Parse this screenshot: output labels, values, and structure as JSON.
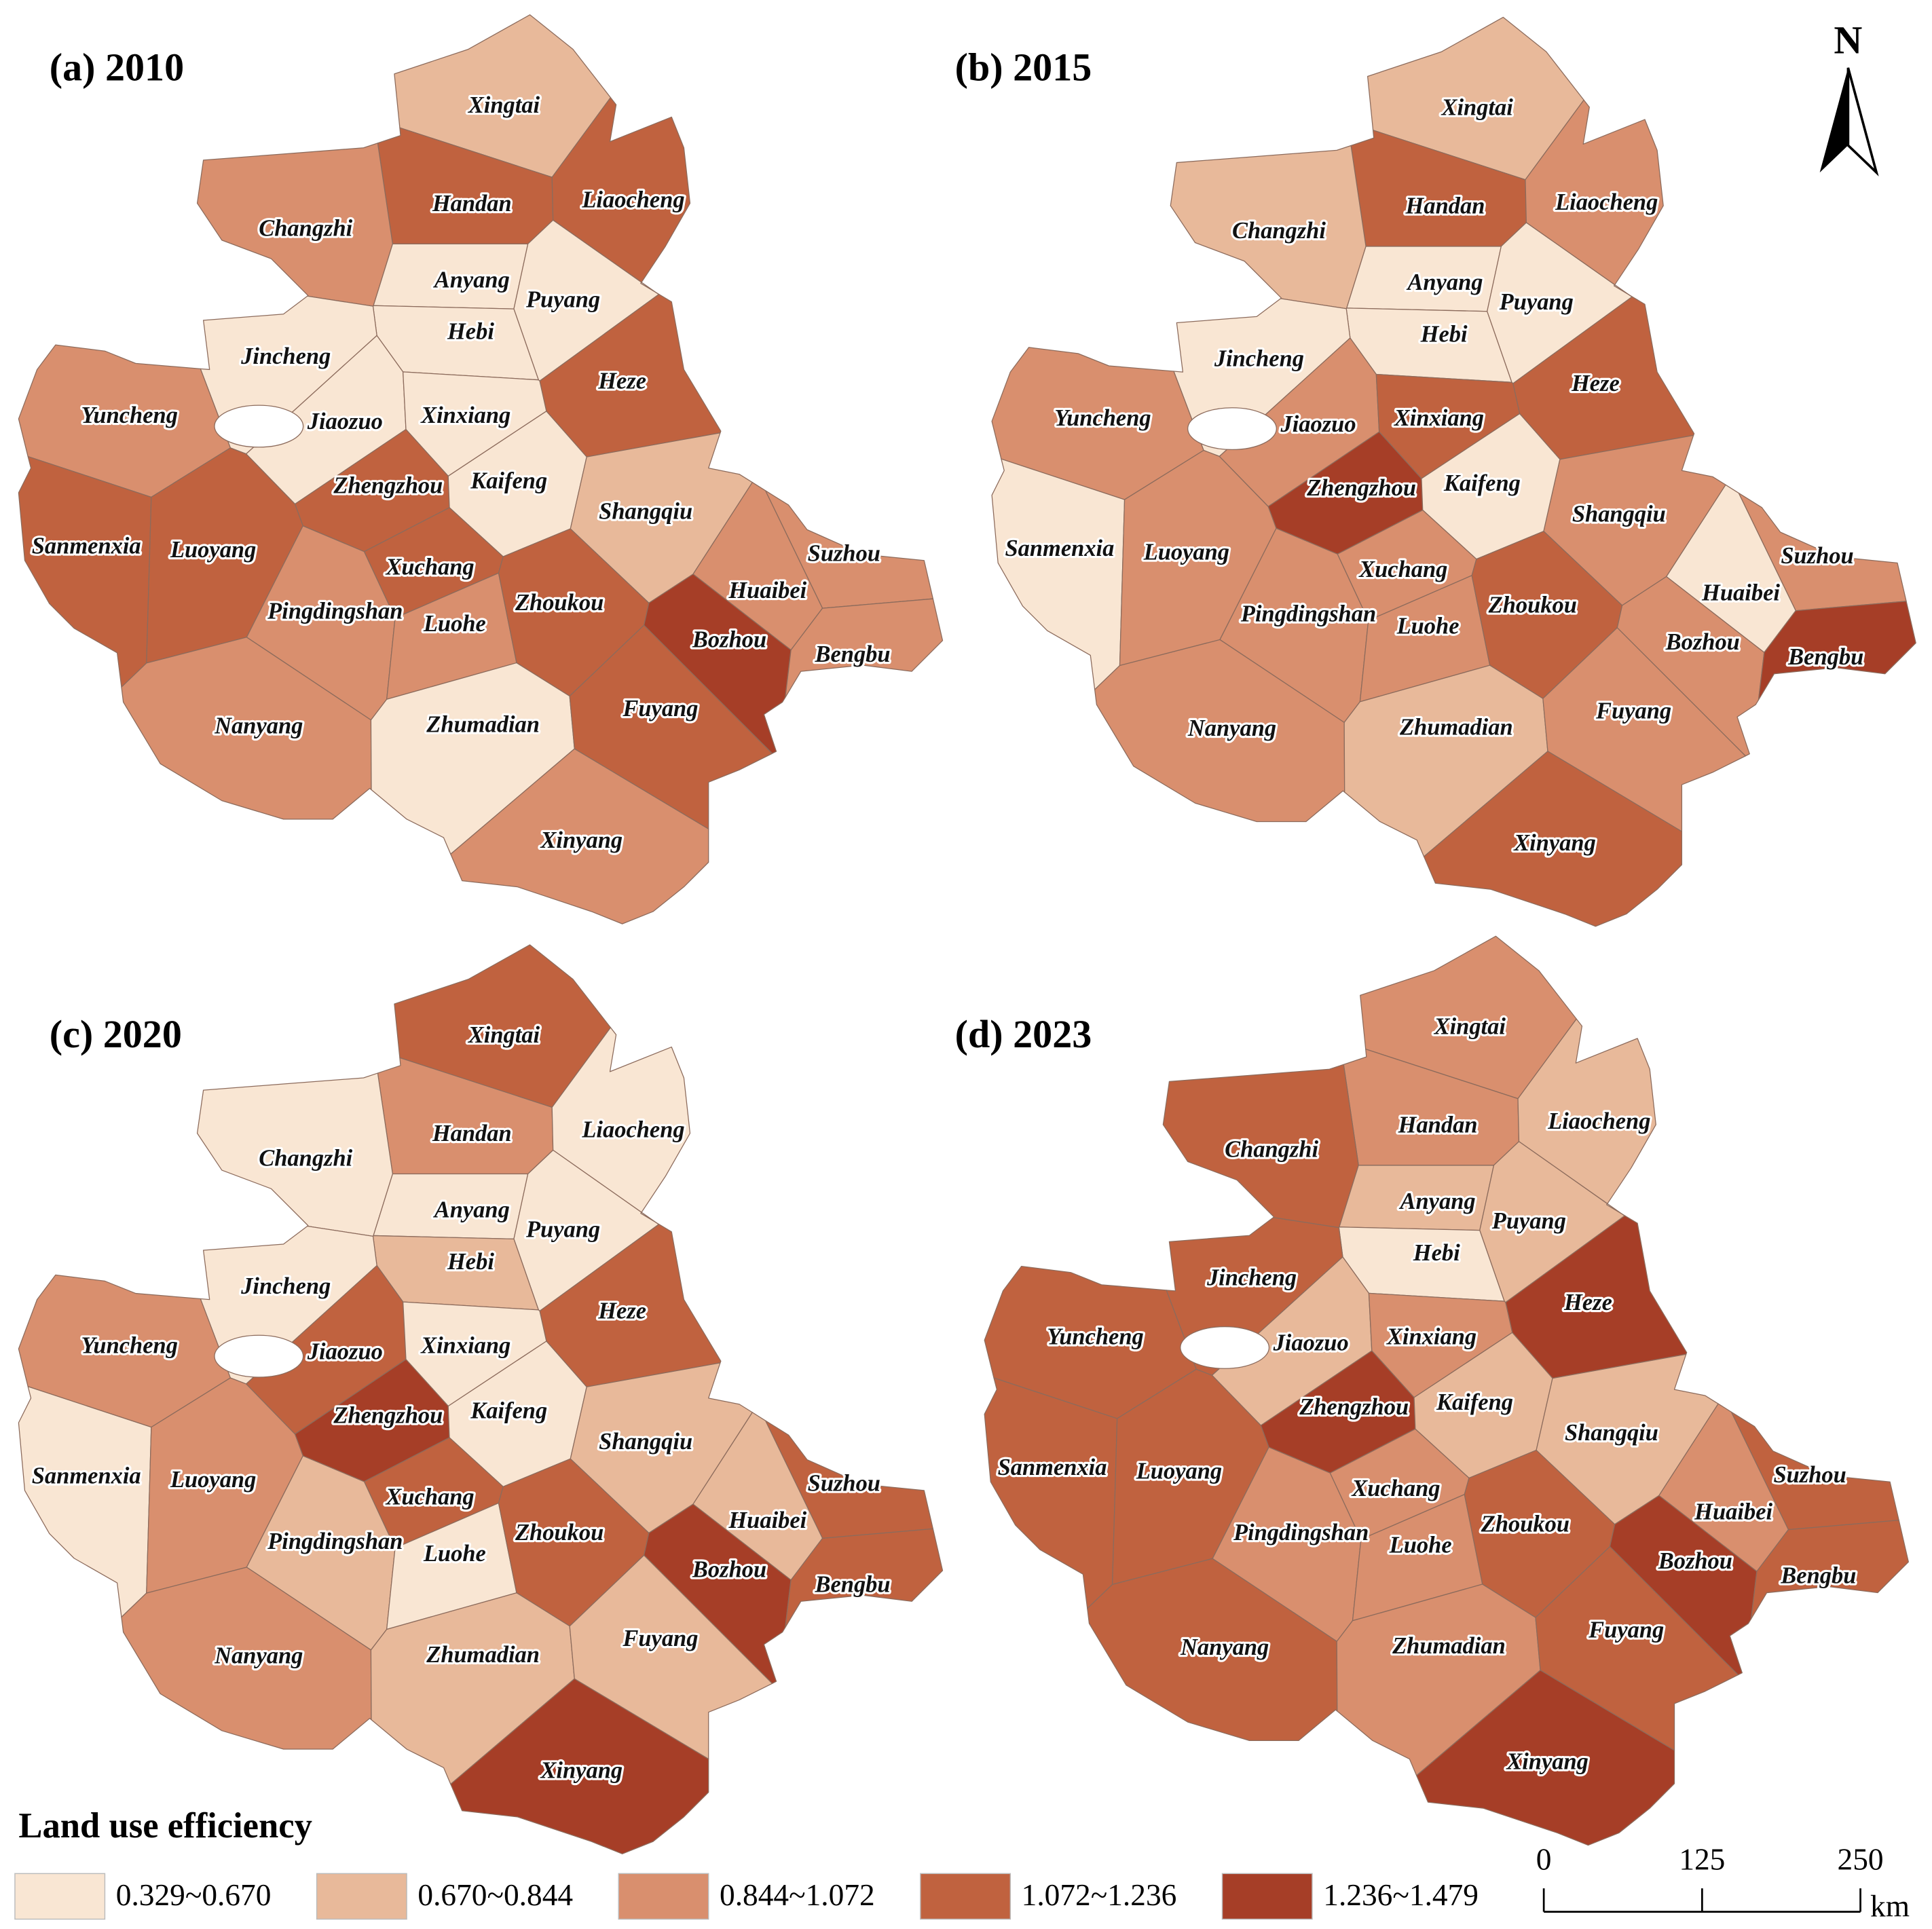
{
  "panels": [
    {
      "title": "(a) 2010",
      "regions": [
        {
          "name": "Xingtai",
          "color": "#e8b99a"
        },
        {
          "name": "Handan",
          "color": "#c0623f"
        },
        {
          "name": "Liaocheng",
          "color": "#c0623f"
        },
        {
          "name": "Changzhi",
          "color": "#d98f6e"
        },
        {
          "name": "Anyang",
          "color": "#f9e6d3"
        },
        {
          "name": "Puyang",
          "color": "#f9e6d3"
        },
        {
          "name": "Hebi",
          "color": "#f9e6d3"
        },
        {
          "name": "Jincheng",
          "color": "#f9e6d3"
        },
        {
          "name": "Heze",
          "color": "#c0623f"
        },
        {
          "name": "Yuncheng",
          "color": "#d98f6e"
        },
        {
          "name": "Jiaozuo",
          "color": "#f9e6d3"
        },
        {
          "name": "Xinxiang",
          "color": "#f9e6d3"
        },
        {
          "name": "Zhengzhou",
          "color": "#c0623f"
        },
        {
          "name": "Kaifeng",
          "color": "#f9e6d3"
        },
        {
          "name": "Shangqiu",
          "color": "#e8b99a"
        },
        {
          "name": "Sanmenxia",
          "color": "#c0623f"
        },
        {
          "name": "Luoyang",
          "color": "#c0623f"
        },
        {
          "name": "Xuchang",
          "color": "#c0623f"
        },
        {
          "name": "Suzhou",
          "color": "#d98f6e"
        },
        {
          "name": "Huaibei",
          "color": "#d98f6e"
        },
        {
          "name": "Pingdingshan",
          "color": "#d98f6e"
        },
        {
          "name": "Luohe",
          "color": "#d98f6e"
        },
        {
          "name": "Zhoukou",
          "color": "#c0623f"
        },
        {
          "name": "Bozhou",
          "color": "#a63e27"
        },
        {
          "name": "Bengbu",
          "color": "#d98f6e"
        },
        {
          "name": "Nanyang",
          "color": "#d98f6e"
        },
        {
          "name": "Zhumadian",
          "color": "#f9e6d3"
        },
        {
          "name": "Fuyang",
          "color": "#c0623f"
        },
        {
          "name": "Xinyang",
          "color": "#d98f6e"
        }
      ]
    },
    {
      "title": "(b) 2015",
      "regions": [
        {
          "name": "Xingtai",
          "color": "#e8b99a"
        },
        {
          "name": "Handan",
          "color": "#c0623f"
        },
        {
          "name": "Liaocheng",
          "color": "#d98f6e"
        },
        {
          "name": "Changzhi",
          "color": "#e8b99a"
        },
        {
          "name": "Anyang",
          "color": "#f9e6d3"
        },
        {
          "name": "Puyang",
          "color": "#f9e6d3"
        },
        {
          "name": "Hebi",
          "color": "#f9e6d3"
        },
        {
          "name": "Jincheng",
          "color": "#f9e6d3"
        },
        {
          "name": "Heze",
          "color": "#c0623f"
        },
        {
          "name": "Yuncheng",
          "color": "#d98f6e"
        },
        {
          "name": "Jiaozuo",
          "color": "#d98f6e"
        },
        {
          "name": "Xinxiang",
          "color": "#c0623f"
        },
        {
          "name": "Zhengzhou",
          "color": "#a63e27"
        },
        {
          "name": "Kaifeng",
          "color": "#f9e6d3"
        },
        {
          "name": "Shangqiu",
          "color": "#d98f6e"
        },
        {
          "name": "Sanmenxia",
          "color": "#f9e6d3"
        },
        {
          "name": "Luoyang",
          "color": "#d98f6e"
        },
        {
          "name": "Xuchang",
          "color": "#d98f6e"
        },
        {
          "name": "Suzhou",
          "color": "#d98f6e"
        },
        {
          "name": "Huaibei",
          "color": "#f9e6d3"
        },
        {
          "name": "Pingdingshan",
          "color": "#d98f6e"
        },
        {
          "name": "Luohe",
          "color": "#d98f6e"
        },
        {
          "name": "Zhoukou",
          "color": "#c0623f"
        },
        {
          "name": "Bozhou",
          "color": "#d98f6e"
        },
        {
          "name": "Bengbu",
          "color": "#a63e27"
        },
        {
          "name": "Nanyang",
          "color": "#d98f6e"
        },
        {
          "name": "Zhumadian",
          "color": "#e8b99a"
        },
        {
          "name": "Fuyang",
          "color": "#d98f6e"
        },
        {
          "name": "Xinyang",
          "color": "#c0623f"
        }
      ]
    },
    {
      "title": "(c) 2020",
      "regions": [
        {
          "name": "Xingtai",
          "color": "#c0623f"
        },
        {
          "name": "Handan",
          "color": "#d98f6e"
        },
        {
          "name": "Liaocheng",
          "color": "#f9e6d3"
        },
        {
          "name": "Changzhi",
          "color": "#f9e6d3"
        },
        {
          "name": "Anyang",
          "color": "#f9e6d3"
        },
        {
          "name": "Puyang",
          "color": "#f9e6d3"
        },
        {
          "name": "Hebi",
          "color": "#e8b99a"
        },
        {
          "name": "Jincheng",
          "color": "#f9e6d3"
        },
        {
          "name": "Heze",
          "color": "#c0623f"
        },
        {
          "name": "Yuncheng",
          "color": "#d98f6e"
        },
        {
          "name": "Jiaozuo",
          "color": "#c0623f"
        },
        {
          "name": "Xinxiang",
          "color": "#f9e6d3"
        },
        {
          "name": "Zhengzhou",
          "color": "#a63e27"
        },
        {
          "name": "Kaifeng",
          "color": "#f9e6d3"
        },
        {
          "name": "Shangqiu",
          "color": "#e8b99a"
        },
        {
          "name": "Sanmenxia",
          "color": "#f9e6d3"
        },
        {
          "name": "Luoyang",
          "color": "#d98f6e"
        },
        {
          "name": "Xuchang",
          "color": "#c0623f"
        },
        {
          "name": "Suzhou",
          "color": "#c0623f"
        },
        {
          "name": "Huaibei",
          "color": "#e8b99a"
        },
        {
          "name": "Pingdingshan",
          "color": "#e8b99a"
        },
        {
          "name": "Luohe",
          "color": "#f9e6d3"
        },
        {
          "name": "Zhoukou",
          "color": "#c0623f"
        },
        {
          "name": "Bozhou",
          "color": "#a63e27"
        },
        {
          "name": "Bengbu",
          "color": "#c0623f"
        },
        {
          "name": "Nanyang",
          "color": "#d98f6e"
        },
        {
          "name": "Zhumadian",
          "color": "#e8b99a"
        },
        {
          "name": "Fuyang",
          "color": "#e8b99a"
        },
        {
          "name": "Xinyang",
          "color": "#a63e27"
        }
      ]
    },
    {
      "title": "(d) 2023",
      "regions": [
        {
          "name": "Xingtai",
          "color": "#d98f6e"
        },
        {
          "name": "Handan",
          "color": "#d98f6e"
        },
        {
          "name": "Liaocheng",
          "color": "#e8b99a"
        },
        {
          "name": "Changzhi",
          "color": "#c0623f"
        },
        {
          "name": "Anyang",
          "color": "#e8b99a"
        },
        {
          "name": "Puyang",
          "color": "#e8b99a"
        },
        {
          "name": "Hebi",
          "color": "#f9e6d3"
        },
        {
          "name": "Jincheng",
          "color": "#c0623f"
        },
        {
          "name": "Heze",
          "color": "#a63e27"
        },
        {
          "name": "Yuncheng",
          "color": "#c0623f"
        },
        {
          "name": "Jiaozuo",
          "color": "#e8b99a"
        },
        {
          "name": "Xinxiang",
          "color": "#d98f6e"
        },
        {
          "name": "Zhengzhou",
          "color": "#a63e27"
        },
        {
          "name": "Kaifeng",
          "color": "#e8b99a"
        },
        {
          "name": "Shangqiu",
          "color": "#e8b99a"
        },
        {
          "name": "Sanmenxia",
          "color": "#c0623f"
        },
        {
          "name": "Luoyang",
          "color": "#c0623f"
        },
        {
          "name": "Xuchang",
          "color": "#d98f6e"
        },
        {
          "name": "Suzhou",
          "color": "#c0623f"
        },
        {
          "name": "Huaibei",
          "color": "#d98f6e"
        },
        {
          "name": "Pingdingshan",
          "color": "#d98f6e"
        },
        {
          "name": "Luohe",
          "color": "#d98f6e"
        },
        {
          "name": "Zhoukou",
          "color": "#c0623f"
        },
        {
          "name": "Bozhou",
          "color": "#a63e27"
        },
        {
          "name": "Bengbu",
          "color": "#c0623f"
        },
        {
          "name": "Nanyang",
          "color": "#c0623f"
        },
        {
          "name": "Zhumadian",
          "color": "#d98f6e"
        },
        {
          "name": "Fuyang",
          "color": "#c0623f"
        },
        {
          "name": "Xinyang",
          "color": "#a63e27"
        }
      ]
    }
  ],
  "legend": {
    "title": "Land use efficiency",
    "classes": [
      {
        "label": "0.329~0.670",
        "color": "#f9e6d3"
      },
      {
        "label": "0.670~0.844",
        "color": "#e8b99a"
      },
      {
        "label": "0.844~1.072",
        "color": "#d98f6e"
      },
      {
        "label": "1.072~1.236",
        "color": "#c0623f"
      },
      {
        "label": "1.236~1.479",
        "color": "#a63e27"
      }
    ]
  },
  "north": "N",
  "scale_bar": {
    "ticks": [
      0,
      125,
      250
    ],
    "unit": "km"
  }
}
